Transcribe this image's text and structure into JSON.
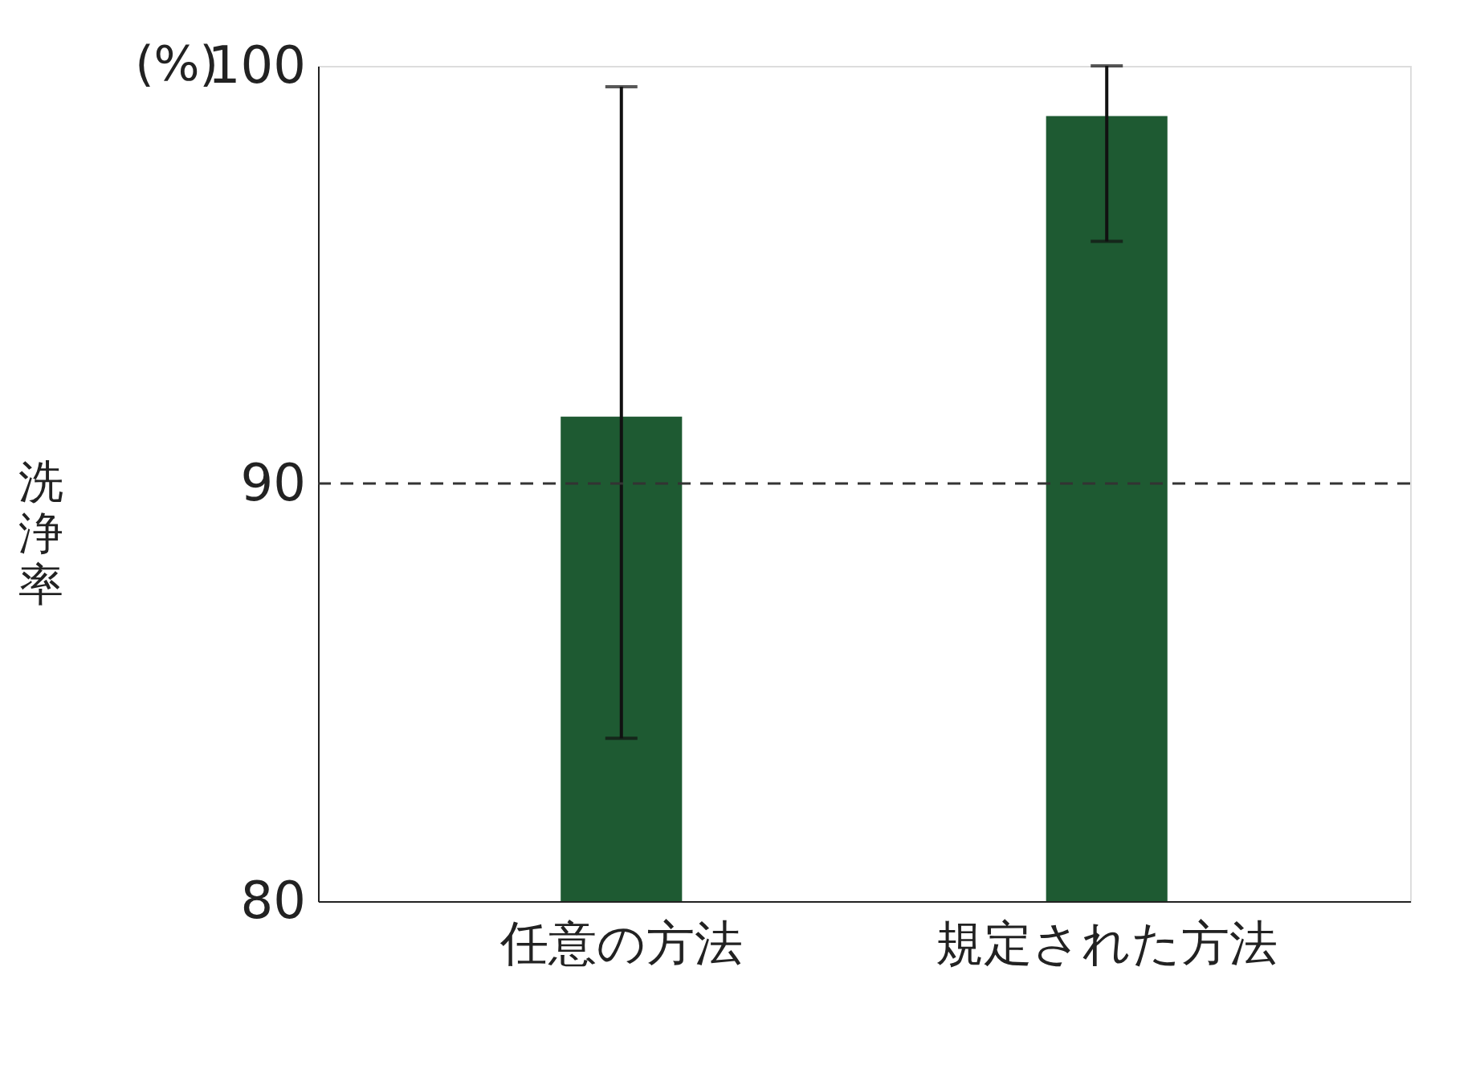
{
  "chart_data": {
    "type": "bar",
    "categories": [
      "任意の方法",
      "規定された方法"
    ],
    "values": [
      91.6,
      98.8
    ],
    "errors": [
      [
        83.9,
        99.5
      ],
      [
        95.8,
        100
      ]
    ],
    "color": "#1e5a32",
    "ylabel": "洗浄率",
    "annotations": [
      "(%)"
    ],
    "ylim": [
      80,
      100
    ],
    "yticks": [
      80,
      90,
      100
    ],
    "ref_lines": [
      {
        "axis": "y",
        "value": 90,
        "color": "#333333",
        "line_style": "dashed"
      }
    ],
    "grid": false
  }
}
